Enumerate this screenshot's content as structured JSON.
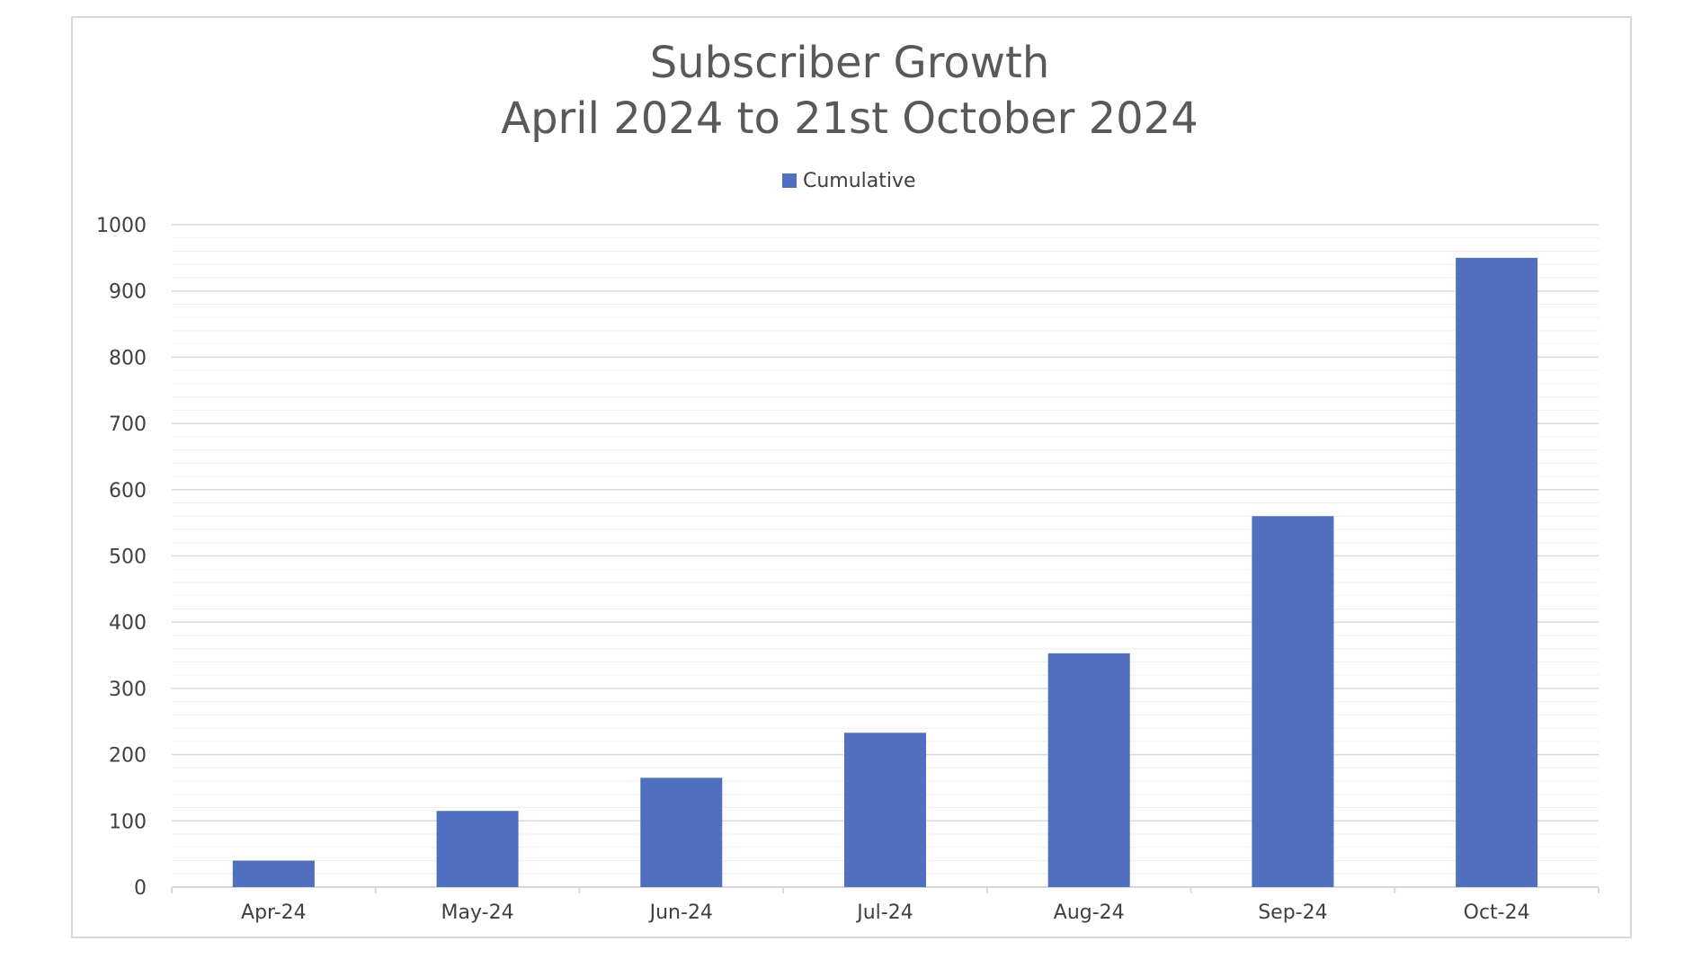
{
  "chart_data": {
    "type": "bar",
    "title": "Subscriber Growth",
    "subtitle": "April 2024 to 21st October 2024",
    "categories": [
      "Apr-24",
      "May-24",
      "Jun-24",
      "Jul-24",
      "Aug-24",
      "Sep-24",
      "Oct-24"
    ],
    "series": [
      {
        "name": "Cumulative",
        "values": [
          40,
          115,
          165,
          233,
          353,
          560,
          950
        ],
        "color": "#5070bf"
      }
    ],
    "ylim": [
      0,
      1000
    ],
    "yticks": [
      0,
      100,
      200,
      300,
      400,
      500,
      600,
      700,
      800,
      900,
      1000
    ],
    "xlabel": "",
    "ylabel": "",
    "grid": true,
    "legend": "top-center"
  },
  "colors": {
    "bar": "#5070bf",
    "gridline": "#d9d9d9",
    "minor_gridline": "#efefef",
    "text": "#404040",
    "title": "#595959"
  }
}
